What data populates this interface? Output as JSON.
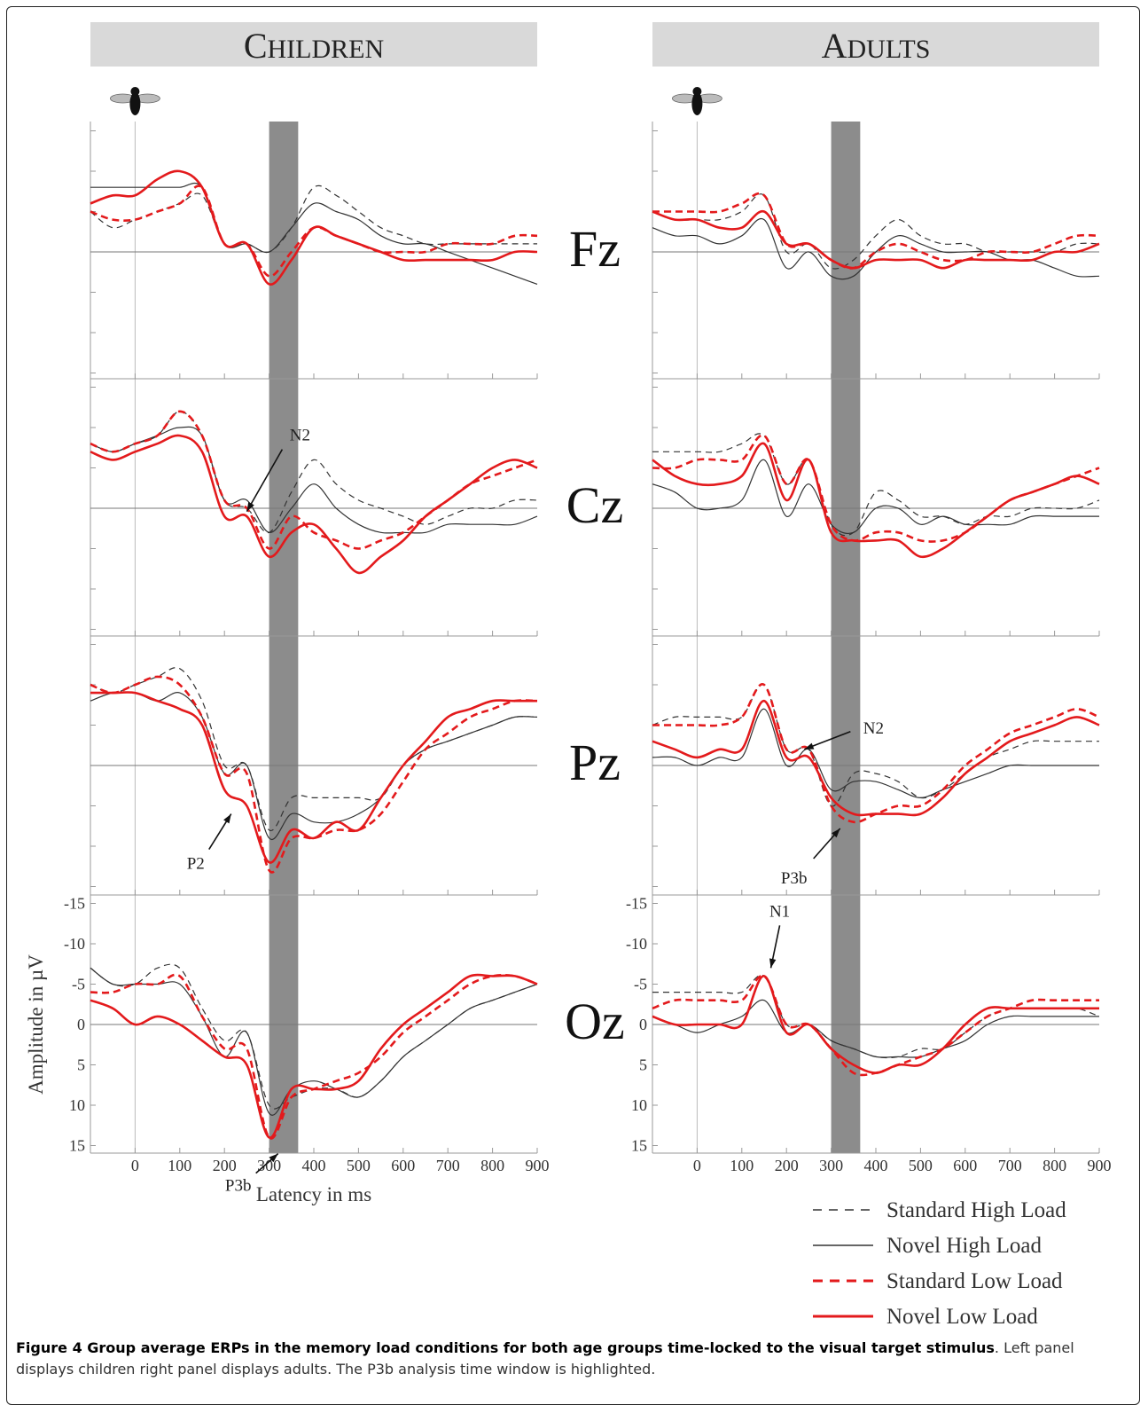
{
  "panels": [
    {
      "title": "Children"
    },
    {
      "title": "Adults"
    }
  ],
  "electrodes": [
    "Fz",
    "Cz",
    "Pz",
    "Oz"
  ],
  "annotations": {
    "children": [
      {
        "label": "N2",
        "row": "Cz",
        "x": 250,
        "y": 0.4
      },
      {
        "label": "P2",
        "row": "Pz",
        "x": 215,
        "y": 6.0
      },
      {
        "label": "P3b",
        "row": "Oz",
        "x": 320,
        "y": 16.0
      }
    ],
    "adults": [
      {
        "label": "N2",
        "row": "Pz",
        "x": 240,
        "y": -2.0
      },
      {
        "label": "P3b",
        "row": "Pz",
        "x": 320,
        "y": 7.8
      },
      {
        "label": "N1",
        "row": "Oz",
        "x": 165,
        "y": -7.0
      }
    ]
  },
  "legend": [
    {
      "label": "Standard High Load",
      "style": "thin-dashed",
      "color": "#333333"
    },
    {
      "label": "Novel High Load",
      "style": "thin-solid",
      "color": "#333333"
    },
    {
      "label": "Standard Low Load",
      "style": "thick-dashed",
      "color": "#e31a1c"
    },
    {
      "label": "Novel Low Load",
      "style": "thick-solid",
      "color": "#e31a1c"
    }
  ],
  "colors": {
    "red": "#e31a1c",
    "black": "#333333",
    "band": "#8c8c8c",
    "header": "#d9d9d9"
  },
  "chart_data": {
    "type": "line",
    "xlabel": "Latency in ms",
    "ylabel": "Amplitude in µV",
    "xlim": [
      -100,
      900
    ],
    "ylim": [
      15,
      -15
    ],
    "x_ticks": [
      0,
      100,
      200,
      300,
      400,
      500,
      600,
      700,
      800,
      900
    ],
    "y_ticks": [
      -15,
      -10,
      -5,
      0,
      5,
      10,
      15
    ],
    "highlight_window_ms": [
      300,
      365
    ],
    "x": [
      -100,
      -50,
      0,
      50,
      100,
      150,
      200,
      250,
      300,
      350,
      400,
      450,
      500,
      550,
      600,
      650,
      700,
      750,
      800,
      850,
      900
    ],
    "series": {
      "children": {
        "Fz": {
          "Standard High Load": [
            -5,
            -3,
            -4,
            -5,
            -6,
            -7,
            -1,
            -1,
            0,
            -3,
            -8,
            -7,
            -5,
            -3,
            -2,
            -1,
            -1,
            -1,
            -1,
            -1,
            -1
          ],
          "Novel High Load": [
            -8,
            -8,
            -8,
            -8,
            -8,
            -8,
            -1,
            -1,
            0,
            -3,
            -6,
            -5,
            -4,
            -2,
            -1,
            -1,
            0,
            1,
            2,
            3,
            4
          ],
          "Standard Low Load": [
            -5,
            -4,
            -4,
            -5,
            -6,
            -8,
            -1,
            -1,
            3,
            0,
            -3,
            -2,
            -1,
            0,
            0,
            0,
            -1,
            -1,
            -1,
            -2,
            -2
          ],
          "Novel Low Load": [
            -6,
            -7,
            -7,
            -9,
            -10,
            -8,
            -1,
            -1,
            4,
            1,
            -3,
            -2,
            -1,
            0,
            1,
            1,
            1,
            1,
            1,
            0,
            0
          ]
        },
        "Cz": {
          "Standard High Load": [
            -8,
            -7,
            -8,
            -9,
            -12,
            -9,
            -1,
            0,
            3,
            -2,
            -6,
            -3,
            -1,
            0,
            1,
            2,
            1,
            0,
            0,
            -1,
            -1
          ],
          "Novel High Load": [
            -8,
            -7,
            -8,
            -9,
            -10,
            -9,
            -1,
            -1,
            3,
            0,
            -3,
            0,
            2,
            3,
            3,
            3,
            2,
            2,
            2,
            2,
            1
          ],
          "Standard Low Load": [
            -8,
            -7,
            -8,
            -9,
            -12,
            -9,
            -1,
            0,
            5,
            1,
            3,
            4,
            5,
            4,
            3,
            1,
            -1,
            -3,
            -4,
            -5,
            -6
          ],
          "Novel Low Load": [
            -7,
            -6,
            -7,
            -8,
            -9,
            -7,
            1,
            1,
            6,
            3,
            2,
            5,
            8,
            6,
            4,
            1,
            -1,
            -3,
            -5,
            -6,
            -5
          ]
        },
        "Pz": {
          "Standard High Load": [
            -10,
            -9,
            -10,
            -11,
            -12,
            -8,
            0,
            0,
            8,
            4,
            4,
            4,
            4,
            4,
            0,
            -2,
            -3,
            -4,
            -5,
            -6,
            -6
          ],
          "Novel High Load": [
            -8,
            -9,
            -9,
            -8,
            -9,
            -6,
            1,
            0,
            9,
            6,
            7,
            7,
            6,
            4,
            0,
            -2,
            -3,
            -4,
            -5,
            -6,
            -6
          ],
          "Standard Low Load": [
            -10,
            -9,
            -10,
            -11,
            -10,
            -6,
            1,
            1,
            13,
            9,
            9,
            8,
            8,
            6,
            2,
            -2,
            -4,
            -6,
            -7,
            -8,
            -8
          ],
          "Novel Low Load": [
            -9,
            -9,
            -9,
            -8,
            -7,
            -5,
            3,
            5,
            12,
            8,
            9,
            7,
            8,
            4,
            0,
            -3,
            -6,
            -7,
            -8,
            -8,
            -8
          ]
        },
        "Oz": {
          "Standard High Load": [
            -7,
            -5,
            -5,
            -7,
            -7,
            -2,
            2,
            1,
            10,
            9,
            8,
            8,
            9,
            7,
            4,
            2,
            0,
            -2,
            -3,
            -4,
            -5
          ],
          "Novel High Load": [
            -7,
            -5,
            -5,
            -5,
            -5,
            -1,
            4,
            1,
            11,
            8,
            7,
            8,
            9,
            7,
            4,
            2,
            0,
            -2,
            -3,
            -4,
            -5
          ],
          "Standard Low Load": [
            -4,
            -4,
            -5,
            -5,
            -6,
            -1,
            3,
            3,
            14,
            9,
            8,
            7,
            6,
            4,
            1,
            -1,
            -3,
            -5,
            -6,
            -6,
            -5
          ],
          "Novel Low Load": [
            -3,
            -2,
            0,
            -1,
            0,
            2,
            4,
            5,
            14,
            8,
            8,
            8,
            7,
            3,
            0,
            -2,
            -4,
            -6,
            -6,
            -6,
            -5
          ]
        }
      },
      "adults": {
        "Fz": {
          "Standard High Load": [
            -5,
            -4,
            -4,
            -4,
            -5,
            -7,
            0,
            -1,
            2,
            1,
            -2,
            -4,
            -2,
            -1,
            -1,
            0,
            0,
            0,
            0,
            -1,
            -1
          ],
          "Novel High Load": [
            -3,
            -2,
            -2,
            -1,
            -2,
            -4,
            2,
            0,
            3,
            3,
            0,
            -2,
            -1,
            0,
            0,
            0,
            1,
            1,
            2,
            3,
            3
          ],
          "Standard Low Load": [
            -5,
            -5,
            -5,
            -5,
            -6,
            -7,
            -1,
            -1,
            1,
            2,
            0,
            -1,
            0,
            1,
            1,
            0,
            0,
            0,
            -1,
            -2,
            -2
          ],
          "Novel Low Load": [
            -5,
            -4,
            -4,
            -3,
            -3,
            -5,
            -1,
            -1,
            1,
            2,
            1,
            1,
            1,
            2,
            1,
            1,
            1,
            1,
            0,
            0,
            -1
          ]
        },
        "Cz": {
          "Standard High Load": [
            -7,
            -7,
            -7,
            -7,
            -8,
            -9,
            -3,
            -6,
            2,
            3,
            -2,
            -1,
            1,
            1,
            2,
            1,
            1,
            0,
            0,
            0,
            -1
          ],
          "Novel High Load": [
            -3,
            -2,
            0,
            0,
            -1,
            -6,
            1,
            -3,
            2,
            3,
            0,
            0,
            2,
            1,
            2,
            2,
            2,
            1,
            1,
            1,
            1
          ],
          "Standard Low Load": [
            -5,
            -5,
            -6,
            -6,
            -6,
            -9,
            -3,
            -6,
            2,
            4,
            3,
            3,
            4,
            4,
            3,
            1,
            -1,
            -2,
            -3,
            -4,
            -5
          ],
          "Novel Low Load": [
            -6,
            -4,
            -3,
            -3,
            -4,
            -8,
            -1,
            -6,
            3,
            4,
            4,
            4,
            6,
            5,
            3,
            1,
            -1,
            -2,
            -3,
            -4,
            -3
          ]
        },
        "Pz": {
          "Standard High Load": [
            -5,
            -6,
            -6,
            -6,
            -6,
            -10,
            -2,
            -2,
            5,
            1,
            1,
            2,
            4,
            3,
            1,
            -1,
            -2,
            -3,
            -3,
            -3,
            -3
          ],
          "Novel High Load": [
            -1,
            -1,
            0,
            -1,
            -1,
            -7,
            0,
            -2,
            3,
            2,
            2,
            3,
            4,
            3,
            2,
            1,
            0,
            0,
            0,
            0,
            0
          ],
          "Standard Low Load": [
            -5,
            -5,
            -5,
            -5,
            -6,
            -10,
            -2,
            -2,
            5,
            7,
            6,
            5,
            5,
            3,
            0,
            -2,
            -4,
            -5,
            -6,
            -7,
            -6
          ],
          "Novel Low Load": [
            -3,
            -2,
            -1,
            -2,
            -2,
            -8,
            -1,
            -1,
            4,
            6,
            6,
            6,
            6,
            4,
            1,
            -1,
            -3,
            -4,
            -5,
            -6,
            -5
          ]
        },
        "Oz": {
          "Standard High Load": [
            -4,
            -4,
            -4,
            -4,
            -4,
            -6,
            0,
            0,
            2,
            3,
            4,
            4,
            3,
            3,
            1,
            -1,
            -2,
            -2,
            -2,
            -2,
            -1
          ],
          "Novel High Load": [
            -1,
            0,
            1,
            0,
            -1,
            -3,
            1,
            0,
            2,
            3,
            4,
            4,
            4,
            3,
            2,
            0,
            -1,
            -1,
            -1,
            -1,
            -1
          ],
          "Standard Low Load": [
            -2,
            -3,
            -3,
            -3,
            -3,
            -6,
            0,
            0,
            3,
            6,
            6,
            5,
            4,
            3,
            1,
            -1,
            -2,
            -3,
            -3,
            -3,
            -3
          ],
          "Novel Low Load": [
            -1,
            0,
            0,
            0,
            0,
            -6,
            1,
            0,
            3,
            5,
            6,
            5,
            5,
            3,
            0,
            -2,
            -2,
            -2,
            -2,
            -2,
            -2
          ]
        }
      }
    }
  },
  "caption": {
    "bold": "Figure 4 Group average ERPs in the memory load conditions for both age groups time-locked to the visual target stimulus",
    "rest": ". Left panel displays children right panel displays adults. The P3b analysis time window is highlighted."
  }
}
